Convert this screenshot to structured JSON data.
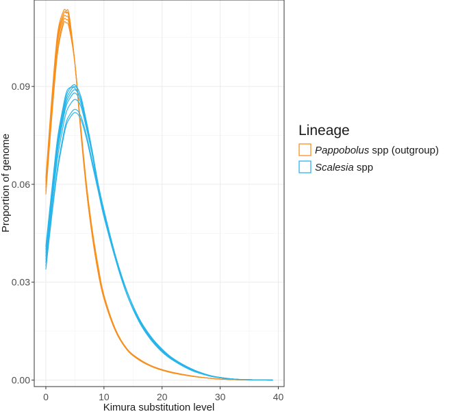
{
  "chart_data": {
    "type": "line",
    "xlabel": "Kimura substitution level",
    "ylabel": "Proportion of genome",
    "xlim": [
      -2,
      41
    ],
    "ylim": [
      -0.002,
      0.1165
    ],
    "x_ticks": [
      0,
      10,
      20,
      30,
      40
    ],
    "x_tick_labels": [
      "0",
      "10",
      "20",
      "30",
      "40"
    ],
    "y_ticks": [
      0.0,
      0.03,
      0.06,
      0.09
    ],
    "y_tick_labels": [
      "0.00",
      "0.03",
      "0.06",
      "0.09"
    ],
    "grid": true,
    "legend": {
      "title": "Lineage",
      "position": "right",
      "entries": [
        {
          "italic": "Pappobolus",
          "rest": " spp (outgroup)",
          "color": "#F7901E"
        },
        {
          "italic": "Scalesia",
          "rest": " spp",
          "color": "#29B5EA"
        }
      ]
    },
    "x": [
      0,
      1,
      2,
      3,
      3.5,
      4,
      5,
      6,
      7,
      8,
      9,
      10,
      12,
      14,
      16,
      18,
      20,
      22,
      25,
      28,
      30,
      33,
      35,
      37,
      39
    ],
    "series": [
      {
        "lineage": "Pappobolus",
        "color": "#F7901E",
        "values": [
          0.057,
          0.08,
          0.1,
          0.109,
          0.1095,
          0.108,
          0.097,
          0.078,
          0.06,
          0.046,
          0.035,
          0.026,
          0.0155,
          0.0095,
          0.0065,
          0.0045,
          0.0032,
          0.0023,
          0.0013,
          0.0006,
          0.0003,
          0.0001,
          5e-05,
          2e-05,
          0.0
        ]
      },
      {
        "lineage": "Pappobolus",
        "color": "#F7901E",
        "values": [
          0.058,
          0.081,
          0.101,
          0.11,
          0.1105,
          0.109,
          0.097,
          0.077,
          0.059,
          0.045,
          0.034,
          0.026,
          0.0155,
          0.0095,
          0.0065,
          0.0045,
          0.0032,
          0.0023,
          0.0013,
          0.0006,
          0.0003,
          0.0001,
          5e-05,
          2e-05,
          0.0
        ]
      },
      {
        "lineage": "Pappobolus",
        "color": "#F7901E",
        "values": [
          0.059,
          0.083,
          0.103,
          0.111,
          0.1115,
          0.11,
          0.097,
          0.077,
          0.059,
          0.045,
          0.034,
          0.025,
          0.015,
          0.0093,
          0.0063,
          0.0044,
          0.0031,
          0.0022,
          0.0012,
          0.0006,
          0.0003,
          0.0001,
          5e-05,
          2e-05,
          0.0
        ]
      },
      {
        "lineage": "Pappobolus",
        "color": "#F7901E",
        "values": [
          0.06,
          0.084,
          0.104,
          0.112,
          0.1125,
          0.111,
          0.097,
          0.077,
          0.058,
          0.044,
          0.033,
          0.025,
          0.015,
          0.0093,
          0.0063,
          0.0044,
          0.0031,
          0.0022,
          0.0012,
          0.0006,
          0.0003,
          0.0001,
          5e-05,
          2e-05,
          0.0
        ]
      },
      {
        "lineage": "Pappobolus",
        "color": "#F7901E",
        "values": [
          0.061,
          0.085,
          0.105,
          0.112,
          0.1128,
          0.111,
          0.097,
          0.077,
          0.058,
          0.044,
          0.033,
          0.025,
          0.015,
          0.0092,
          0.0062,
          0.0043,
          0.003,
          0.0021,
          0.0012,
          0.0006,
          0.0003,
          0.0001,
          5e-05,
          2e-05,
          0.0
        ]
      },
      {
        "lineage": "Pappobolus",
        "color": "#F7901E",
        "values": [
          0.062,
          0.086,
          0.106,
          0.113,
          0.1132,
          0.112,
          0.097,
          0.076,
          0.058,
          0.044,
          0.033,
          0.025,
          0.015,
          0.0092,
          0.0062,
          0.0043,
          0.003,
          0.0021,
          0.0012,
          0.0006,
          0.0003,
          0.0001,
          5e-05,
          2e-05,
          0.0
        ]
      },
      {
        "lineage": "Scalesia",
        "color": "#29B5EA",
        "values": [
          0.034,
          0.05,
          0.064,
          0.074,
          0.078,
          0.08,
          0.082,
          0.08,
          0.074,
          0.066,
          0.058,
          0.05,
          0.037,
          0.027,
          0.019,
          0.0135,
          0.0095,
          0.0065,
          0.0035,
          0.0015,
          0.0008,
          0.0002,
          0.0001,
          3e-05,
          0.0
        ]
      },
      {
        "lineage": "Scalesia",
        "color": "#29B5EA",
        "values": [
          0.035,
          0.051,
          0.065,
          0.075,
          0.079,
          0.081,
          0.083,
          0.081,
          0.075,
          0.067,
          0.059,
          0.051,
          0.0375,
          0.027,
          0.019,
          0.0135,
          0.0094,
          0.0064,
          0.0034,
          0.0015,
          0.0008,
          0.0002,
          0.0001,
          3e-05,
          0.0
        ]
      },
      {
        "lineage": "Scalesia",
        "color": "#29B5EA",
        "values": [
          0.036,
          0.053,
          0.068,
          0.078,
          0.082,
          0.084,
          0.086,
          0.084,
          0.077,
          0.069,
          0.06,
          0.052,
          0.038,
          0.027,
          0.019,
          0.0132,
          0.0092,
          0.0063,
          0.0033,
          0.0015,
          0.0008,
          0.0002,
          0.0001,
          3e-05,
          0.0
        ]
      },
      {
        "lineage": "Scalesia",
        "color": "#29B5EA",
        "values": [
          0.037,
          0.054,
          0.07,
          0.08,
          0.084,
          0.086,
          0.088,
          0.085,
          0.078,
          0.069,
          0.06,
          0.052,
          0.038,
          0.027,
          0.019,
          0.013,
          0.009,
          0.0062,
          0.0032,
          0.0014,
          0.0007,
          0.0002,
          0.0001,
          3e-05,
          0.0
        ]
      },
      {
        "lineage": "Scalesia",
        "color": "#29B5EA",
        "values": [
          0.038,
          0.055,
          0.071,
          0.081,
          0.085,
          0.087,
          0.089,
          0.086,
          0.079,
          0.07,
          0.06,
          0.052,
          0.038,
          0.027,
          0.019,
          0.013,
          0.009,
          0.0062,
          0.0032,
          0.0014,
          0.0007,
          0.0002,
          0.0001,
          3e-05,
          0.0
        ]
      },
      {
        "lineage": "Scalesia",
        "color": "#29B5EA",
        "values": [
          0.039,
          0.056,
          0.072,
          0.082,
          0.086,
          0.088,
          0.09,
          0.087,
          0.079,
          0.07,
          0.06,
          0.052,
          0.037,
          0.026,
          0.0185,
          0.0128,
          0.0088,
          0.006,
          0.0031,
          0.0014,
          0.0007,
          0.0002,
          0.0001,
          3e-05,
          0.0
        ]
      },
      {
        "lineage": "Scalesia",
        "color": "#29B5EA",
        "values": [
          0.04,
          0.057,
          0.073,
          0.083,
          0.087,
          0.089,
          0.0905,
          0.087,
          0.079,
          0.07,
          0.06,
          0.051,
          0.037,
          0.026,
          0.0183,
          0.0126,
          0.0087,
          0.006,
          0.0031,
          0.0014,
          0.0007,
          0.0002,
          0.0001,
          3e-05,
          0.0
        ]
      },
      {
        "lineage": "Scalesia",
        "color": "#29B5EA",
        "values": [
          0.041,
          0.058,
          0.074,
          0.084,
          0.088,
          0.0895,
          0.0895,
          0.086,
          0.078,
          0.069,
          0.059,
          0.051,
          0.037,
          0.026,
          0.018,
          0.0125,
          0.0086,
          0.0059,
          0.003,
          0.0013,
          0.0007,
          0.0002,
          0.0001,
          3e-05,
          0.0
        ]
      }
    ]
  }
}
